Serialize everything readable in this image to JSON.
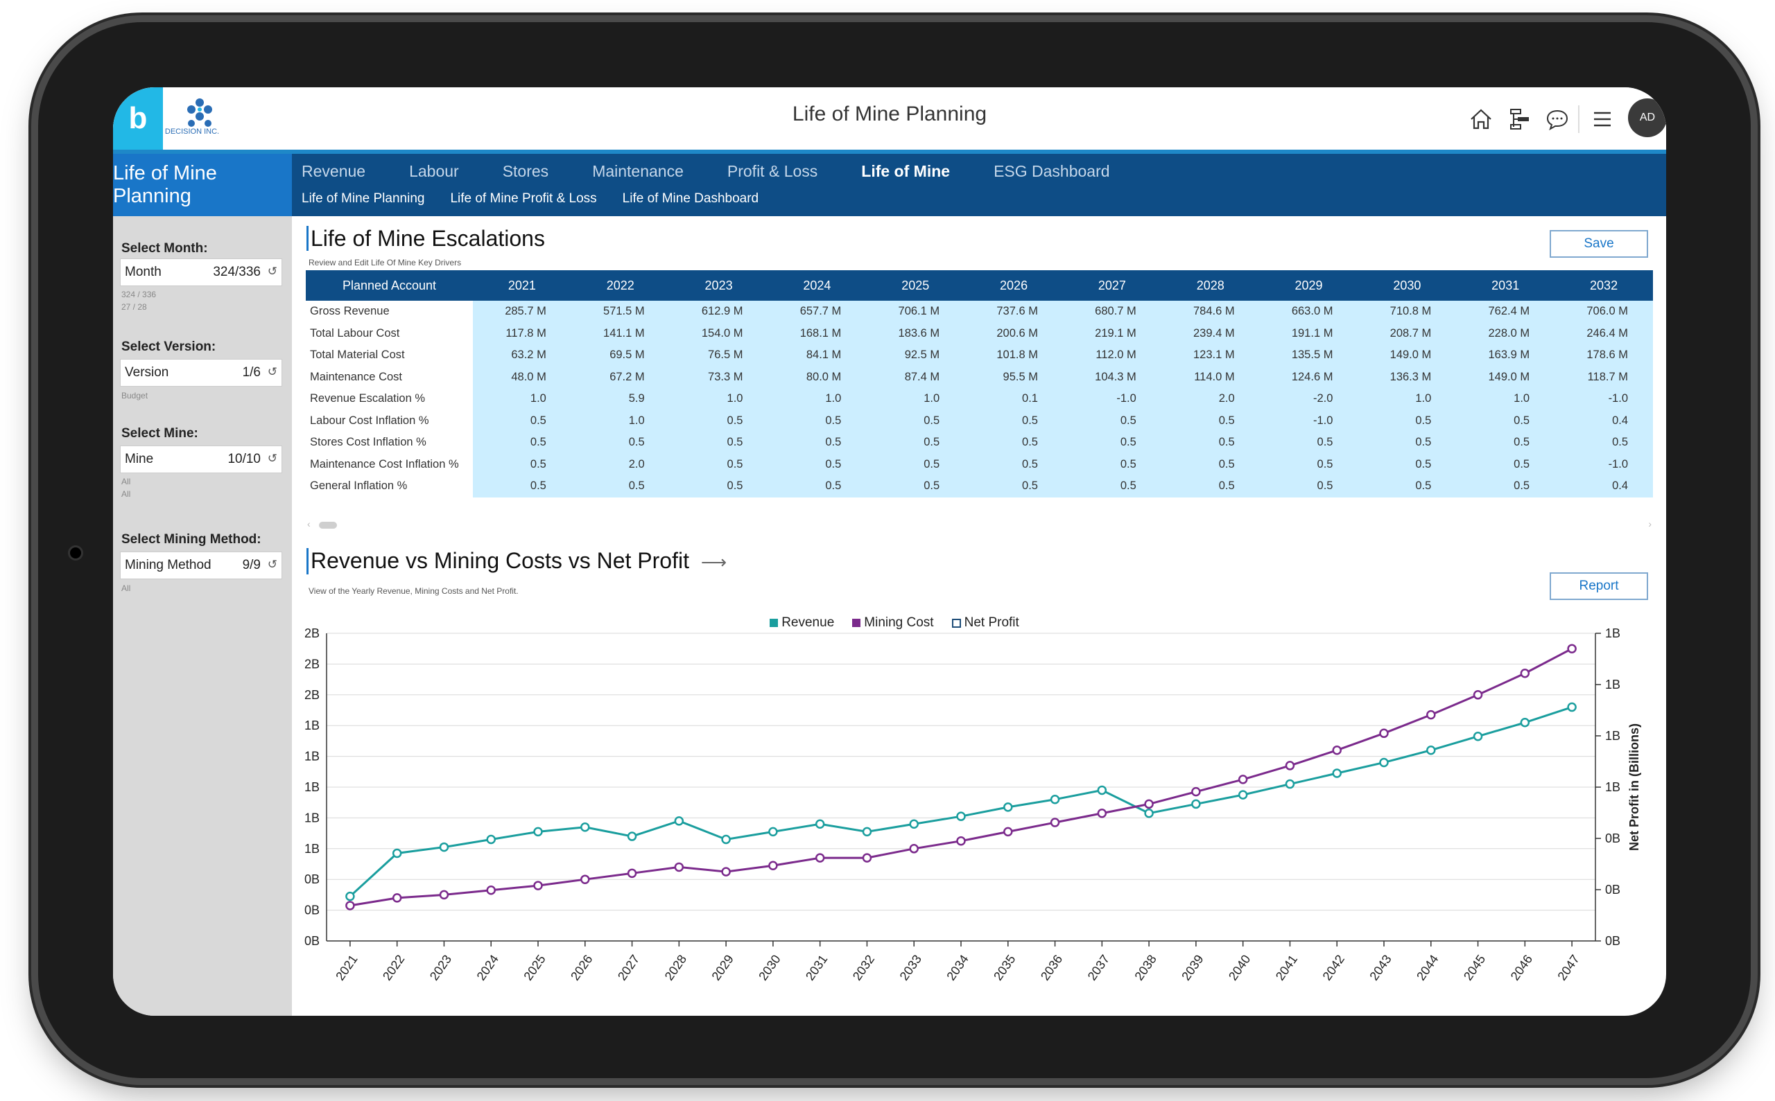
{
  "header": {
    "logo_letter": "b",
    "logo_text": "DECISION INC.",
    "app_title": "Life of Mine Planning",
    "user_initials": "AD"
  },
  "nav": {
    "brand": "Life of Mine Planning",
    "tabs": [
      {
        "label": "Revenue"
      },
      {
        "label": "Labour"
      },
      {
        "label": "Stores"
      },
      {
        "label": "Maintenance"
      },
      {
        "label": "Profit & Loss"
      },
      {
        "label": "Life of Mine",
        "active": true
      },
      {
        "label": "ESG Dashboard"
      }
    ],
    "subtabs": [
      {
        "label": "Life of Mine Planning"
      },
      {
        "label": "Life of Mine Profit & Loss"
      },
      {
        "label": "Life of Mine Dashboard"
      }
    ]
  },
  "sidebar": {
    "filters": [
      {
        "label": "Select Month:",
        "name": "Month",
        "count": "324/336",
        "notes": [
          "324 / 336",
          "27 / 28"
        ]
      },
      {
        "label": "Select Version:",
        "name": "Version",
        "count": "1/6",
        "notes": [
          "Budget"
        ]
      },
      {
        "label": "Select Mine:",
        "name": "Mine",
        "count": "10/10",
        "notes": [
          "All",
          "All"
        ]
      },
      {
        "label": "Select Mining Method:",
        "name": "Mining Method",
        "count": "9/9",
        "notes": [
          "All"
        ]
      }
    ]
  },
  "escalations": {
    "title": "Life of Mine Escalations",
    "subtitle": "Review and Edit Life Of Mine Key Drivers",
    "save_label": "Save",
    "columns": [
      "Planned Account",
      "2021",
      "2022",
      "2023",
      "2024",
      "2025",
      "2026",
      "2027",
      "2028",
      "2029",
      "2030",
      "2031",
      "2032"
    ],
    "rows": [
      {
        "account": "Gross Revenue",
        "values": [
          "285.7 M",
          "571.5 M",
          "612.9 M",
          "657.7 M",
          "706.1 M",
          "737.6 M",
          "680.7 M",
          "784.6 M",
          "663.0 M",
          "710.8 M",
          "762.4 M",
          "706.0 M"
        ]
      },
      {
        "account": "Total Labour Cost",
        "values": [
          "117.8 M",
          "141.1 M",
          "154.0 M",
          "168.1 M",
          "183.6 M",
          "200.6 M",
          "219.1 M",
          "239.4 M",
          "191.1 M",
          "208.7 M",
          "228.0 M",
          "246.4 M"
        ]
      },
      {
        "account": "Total Material Cost",
        "values": [
          "63.2 M",
          "69.5 M",
          "76.5 M",
          "84.1 M",
          "92.5 M",
          "101.8 M",
          "112.0 M",
          "123.1 M",
          "135.5 M",
          "149.0 M",
          "163.9 M",
          "178.6 M"
        ]
      },
      {
        "account": "Maintenance Cost",
        "values": [
          "48.0 M",
          "67.2 M",
          "73.3 M",
          "80.0 M",
          "87.4 M",
          "95.5 M",
          "104.3 M",
          "114.0 M",
          "124.6 M",
          "136.3 M",
          "149.0 M",
          "118.7 M"
        ]
      },
      {
        "account": "Revenue Escalation %",
        "values": [
          "1.0",
          "5.9",
          "1.0",
          "1.0",
          "1.0",
          "0.1",
          "-1.0",
          "2.0",
          "-2.0",
          "1.0",
          "1.0",
          "-1.0"
        ]
      },
      {
        "account": "Labour Cost Inflation %",
        "values": [
          "0.5",
          "1.0",
          "0.5",
          "0.5",
          "0.5",
          "0.5",
          "0.5",
          "0.5",
          "-1.0",
          "0.5",
          "0.5",
          "0.4"
        ]
      },
      {
        "account": "Stores Cost Inflation %",
        "values": [
          "0.5",
          "0.5",
          "0.5",
          "0.5",
          "0.5",
          "0.5",
          "0.5",
          "0.5",
          "0.5",
          "0.5",
          "0.5",
          "0.5"
        ]
      },
      {
        "account": "Maintenance Cost Inflation %",
        "values": [
          "0.5",
          "2.0",
          "0.5",
          "0.5",
          "0.5",
          "0.5",
          "0.5",
          "0.5",
          "0.5",
          "0.5",
          "0.5",
          "-1.0"
        ]
      },
      {
        "account": "General Inflation %",
        "values": [
          "0.5",
          "0.5",
          "0.5",
          "0.5",
          "0.5",
          "0.5",
          "0.5",
          "0.5",
          "0.5",
          "0.5",
          "0.5",
          "0.4"
        ]
      }
    ]
  },
  "chart_section": {
    "title": "Revenue vs Mining Costs vs Net Profit",
    "arrow": "⟶",
    "subtitle": "View of the Yearly Revenue, Mining Costs and Net Profit.",
    "report_label": "Report"
  },
  "colors": {
    "revenue": "#1a9e9e",
    "mining_cost": "#7b2a8c",
    "net_profit_border": "#1e4d78",
    "nav": "#0e4d86",
    "accent": "#1976c8"
  },
  "chart_data": {
    "type": "line",
    "x": [
      "2021",
      "2022",
      "2023",
      "2024",
      "2025",
      "2026",
      "2027",
      "2028",
      "2029",
      "2030",
      "2031",
      "2032",
      "2033",
      "2034",
      "2035",
      "2036",
      "2037",
      "2038",
      "2039",
      "2040",
      "2041",
      "2042",
      "2043",
      "2044",
      "2045",
      "2046",
      "2047"
    ],
    "left_ticks": [
      "2B",
      "2B",
      "2B",
      "1B",
      "1B",
      "1B",
      "1B",
      "1B",
      "0B",
      "0B",
      "0B"
    ],
    "right_ticks": [
      "1B",
      "1B",
      "1B",
      "1B",
      "0B",
      "0B",
      "0B"
    ],
    "right_axis_label": "Net Profit in (Billions)",
    "ylim_left": [
      0,
      2.0
    ],
    "legend": [
      {
        "name": "Revenue",
        "color": "#1a9e9e",
        "style": "filled"
      },
      {
        "name": "Mining Cost",
        "color": "#7b2a8c",
        "style": "filled"
      },
      {
        "name": "Net Profit",
        "color": "#1e4d78",
        "style": "outline"
      }
    ],
    "series": [
      {
        "name": "Revenue",
        "color": "#1a9e9e",
        "values": [
          0.29,
          0.57,
          0.61,
          0.66,
          0.71,
          0.74,
          0.68,
          0.78,
          0.66,
          0.71,
          0.76,
          0.71,
          0.76,
          0.81,
          0.87,
          0.92,
          0.98,
          0.83,
          0.89,
          0.95,
          1.02,
          1.09,
          1.16,
          1.24,
          1.33,
          1.42,
          1.52
        ]
      },
      {
        "name": "Mining Cost",
        "color": "#7b2a8c",
        "values": [
          0.23,
          0.28,
          0.3,
          0.33,
          0.36,
          0.4,
          0.44,
          0.48,
          0.45,
          0.49,
          0.54,
          0.54,
          0.6,
          0.65,
          0.71,
          0.77,
          0.83,
          0.89,
          0.97,
          1.05,
          1.14,
          1.24,
          1.35,
          1.47,
          1.6,
          1.74,
          1.9
        ]
      }
    ],
    "grid": true,
    "legend_position": "top-center"
  }
}
